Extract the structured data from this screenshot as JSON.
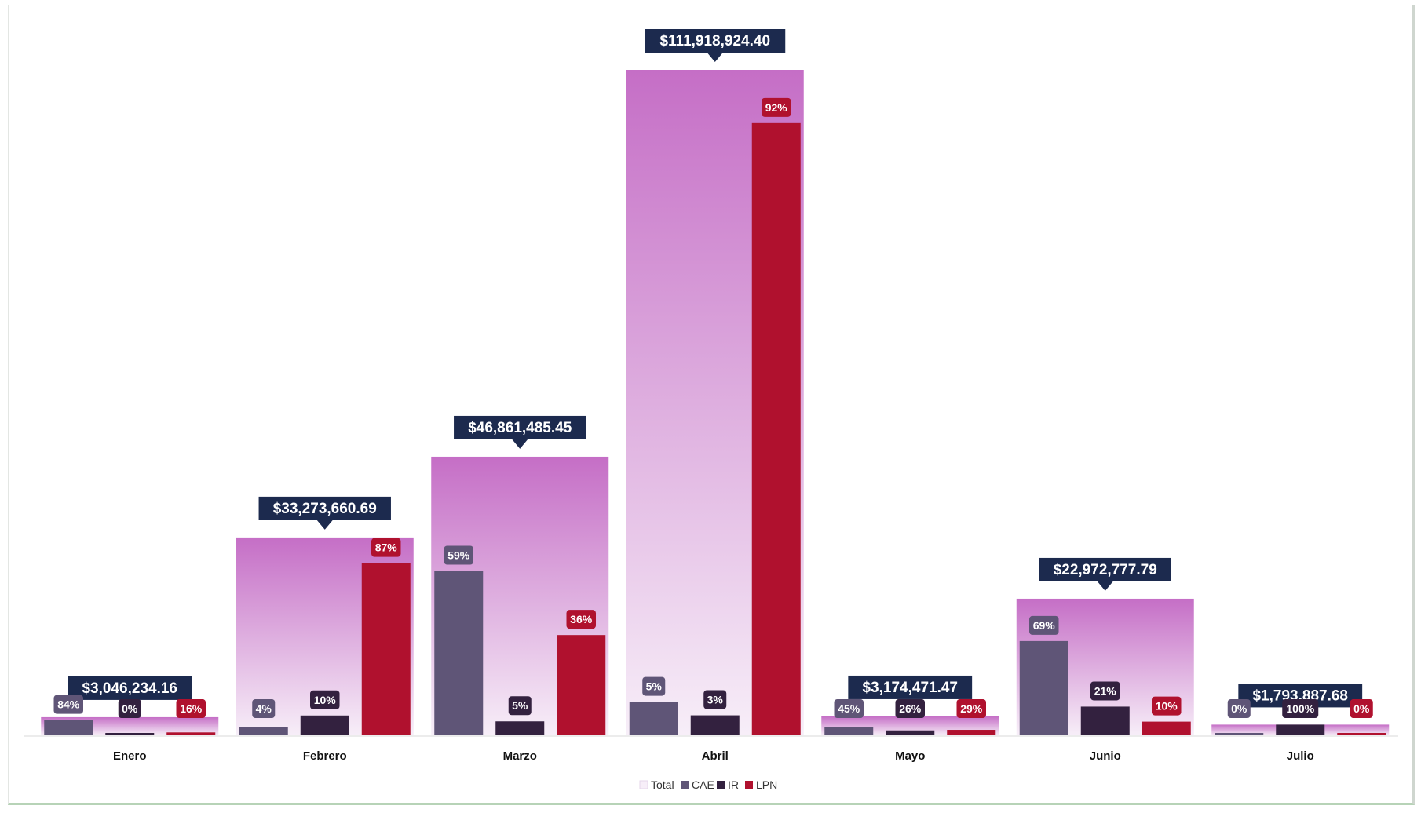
{
  "chart_data": {
    "type": "bar",
    "categories": [
      "Enero",
      "Febrero",
      "Marzo",
      "Abril",
      "Mayo",
      "Junio",
      "Julio"
    ],
    "totals": [
      3046234.16,
      33273660.69,
      46861485.45,
      111918924.4,
      3174471.47,
      22972777.79,
      1793887.68
    ],
    "total_labels": [
      "$3,046,234.16",
      "$33,273,660.69",
      "$46,861,485.45",
      "$111,918,924.40",
      "$3,174,471.47",
      "$22,972,777.79",
      "$1,793,887.68"
    ],
    "series": [
      {
        "name": "CAE",
        "values": [
          84,
          4,
          59,
          5,
          45,
          69,
          0
        ],
        "labels": [
          "84%",
          "4%",
          "59%",
          "5%",
          "45%",
          "69%",
          "0%"
        ]
      },
      {
        "name": "IR",
        "values": [
          0,
          10,
          5,
          3,
          26,
          21,
          100
        ],
        "labels": [
          "0%",
          "10%",
          "5%",
          "3%",
          "26%",
          "21%",
          "100%"
        ]
      },
      {
        "name": "LPN",
        "values": [
          16,
          87,
          36,
          92,
          29,
          10,
          0
        ],
        "labels": [
          "16%",
          "87%",
          "36%",
          "92%",
          "29%",
          "10%",
          "0%"
        ]
      }
    ],
    "legend": [
      "Total",
      "CAE",
      "IR",
      "LPN"
    ],
    "legend_position": "bottom",
    "ylim": [
      0,
      111918924.4
    ],
    "grid": false,
    "colors": {
      "Total_top": "#c56ec6",
      "Total_bottom": "#f7eef8",
      "CAE": "#5f5577",
      "IR": "#33213f",
      "LPN": "#b0112e",
      "total_label_bg": "#1c2a4e"
    }
  }
}
